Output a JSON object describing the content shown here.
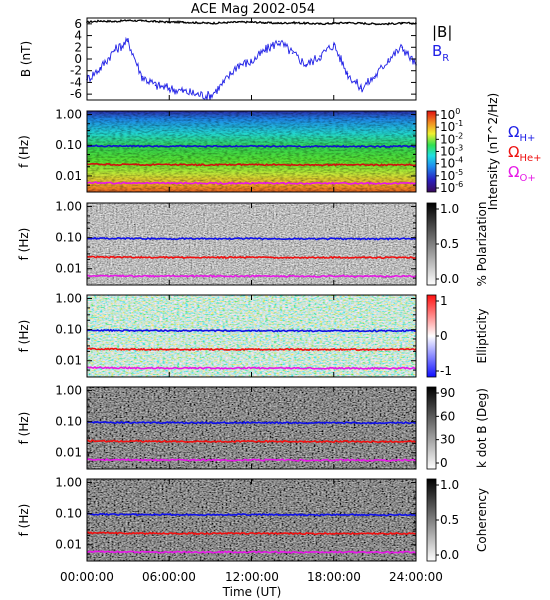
{
  "chart_data": {
    "title": "ACE Mag 2002-054",
    "xlabel": "Time (UT)",
    "x_ticks": [
      "00:00:00",
      "06:00:00",
      "12:00:00",
      "18:00:00",
      "24:00:00"
    ],
    "x_range_hours": [
      0,
      24
    ],
    "panels": [
      {
        "id": "b-field",
        "type": "line",
        "ylabel": "B (nT)",
        "ylim": [
          -7,
          7
        ],
        "y_ticks": [
          "6",
          "4",
          "2",
          "0",
          "-2",
          "-4",
          "-6"
        ],
        "legend": [
          "|B|",
          "B",
          "R"
        ],
        "series": [
          {
            "name": "|B|",
            "color": "#000000",
            "x": [
              0,
              1,
              2,
              3,
              4,
              5,
              6,
              7,
              8,
              9,
              10,
              11,
              12,
              13,
              14,
              15,
              16,
              17,
              18,
              19,
              20,
              21,
              22,
              23,
              24
            ],
            "values": [
              6.3,
              6.5,
              6.4,
              6.6,
              6.5,
              6.4,
              6.3,
              6.3,
              6.2,
              6.1,
              6.2,
              6.3,
              6.3,
              6.2,
              6.1,
              6.2,
              6.1,
              6.0,
              6.1,
              6.2,
              6.1,
              6.0,
              6.0,
              6.1,
              6.1
            ]
          },
          {
            "name": "B_R",
            "color": "#1f1fe6",
            "x": [
              0,
              1,
              2,
              3,
              4,
              5,
              6,
              7,
              8,
              9,
              10,
              11,
              12,
              13,
              14,
              15,
              16,
              17,
              18,
              19,
              20,
              21,
              22,
              23,
              24
            ],
            "values": [
              -3.5,
              -1.5,
              1.5,
              3.0,
              -3.0,
              -4.5,
              -5.0,
              -5.5,
              -6.0,
              -6.3,
              -4.0,
              -1.0,
              -0.5,
              1.5,
              3.0,
              1.0,
              -1.0,
              0.5,
              2.5,
              -2.5,
              -5.0,
              -3.0,
              0.0,
              2.0,
              -1.0
            ]
          }
        ]
      },
      {
        "id": "intensity",
        "type": "heatmap",
        "ylabel": "f (Hz)",
        "ylim": [
          0.003,
          1.3
        ],
        "y_ticks": [
          "1.00",
          "0.10",
          "0.01"
        ],
        "colorbar_ticks": [
          "10^0",
          "10^-1",
          "10^-2",
          "10^-3",
          "10^-4",
          "10^-5",
          "10^-6"
        ],
        "colorbar_label": "Intensity (nT^2/Hz)",
        "lines": [
          {
            "name": "Ω H+",
            "color": "#1f1fe6",
            "values": [
              0.096,
              0.095,
              0.094,
              0.094,
              0.093,
              0.093,
              0.093,
              0.092,
              0.092,
              0.092,
              0.093,
              0.093,
              0.093,
              0.092,
              0.092,
              0.092,
              0.091,
              0.091,
              0.092,
              0.092,
              0.091,
              0.091,
              0.091,
              0.092,
              0.092
            ]
          },
          {
            "name": "Ω He+",
            "color": "#ee1111",
            "values": [
              0.024,
              0.024,
              0.0235,
              0.0235,
              0.0232,
              0.0232,
              0.0232,
              0.023,
              0.023,
              0.023,
              0.0232,
              0.0232,
              0.0232,
              0.023,
              0.023,
              0.023,
              0.0228,
              0.0228,
              0.023,
              0.023,
              0.0228,
              0.0228,
              0.0228,
              0.023,
              0.023
            ]
          },
          {
            "name": "Ω O+",
            "color": "#e619e6",
            "values": [
              0.006,
              0.006,
              0.0059,
              0.0059,
              0.0058,
              0.0058,
              0.0058,
              0.0058,
              0.0058,
              0.0058,
              0.0058,
              0.0058,
              0.0058,
              0.0058,
              0.0058,
              0.0058,
              0.0057,
              0.0057,
              0.0058,
              0.0058,
              0.0057,
              0.0057,
              0.0057,
              0.0058,
              0.0058
            ]
          }
        ]
      },
      {
        "id": "polarization",
        "type": "heatmap",
        "ylabel": "f (Hz)",
        "y_ticks": [
          "1.00",
          "0.10",
          "0.01"
        ],
        "colorbar_ticks": [
          "1.0",
          "0.5",
          "0.0"
        ],
        "colorbar_label": "% Polarization"
      },
      {
        "id": "ellipticity",
        "type": "heatmap",
        "ylabel": "f (Hz)",
        "y_ticks": [
          "1.00",
          "0.10",
          "0.01"
        ],
        "colorbar_ticks": [
          "1",
          "0",
          "-1"
        ],
        "colorbar_label": "Ellipticity"
      },
      {
        "id": "k-dot-b",
        "type": "heatmap",
        "ylabel": "f (Hz)",
        "y_ticks": [
          "1.00",
          "0.10",
          "0.01"
        ],
        "colorbar_ticks": [
          "90",
          "60",
          "30",
          "0"
        ],
        "colorbar_label": "k dot B (Deg)"
      },
      {
        "id": "coherency",
        "type": "heatmap",
        "ylabel": "f (Hz)",
        "y_ticks": [
          "1.00",
          "0.10",
          "0.01"
        ],
        "colorbar_ticks": [
          "1.0",
          "0.5",
          "0.0"
        ],
        "colorbar_label": "Coherency"
      }
    ],
    "legend_right": [
      {
        "label": "Ω",
        "sub": "H+",
        "color": "#1f1fe6"
      },
      {
        "label": "Ω",
        "sub": "He+",
        "color": "#ee1111"
      },
      {
        "label": "Ω",
        "sub": "O+",
        "color": "#e619e6"
      }
    ]
  }
}
